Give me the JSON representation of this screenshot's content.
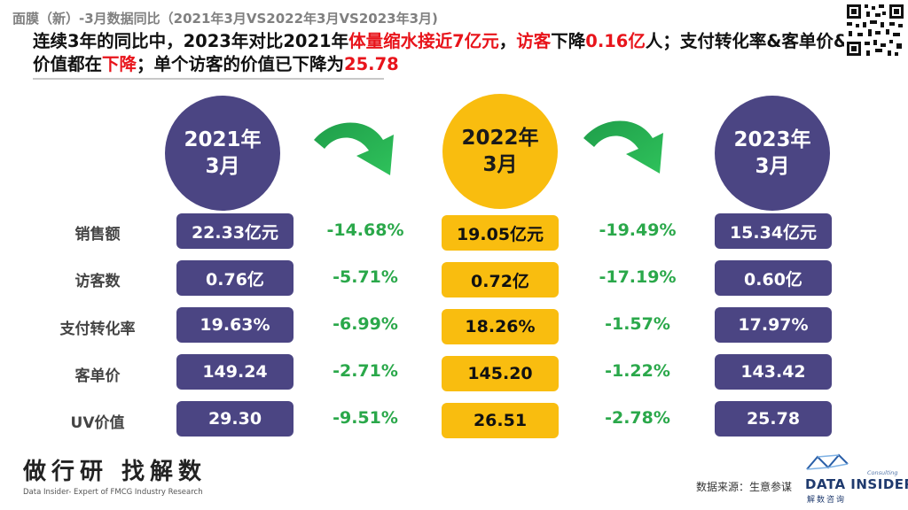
{
  "subtitle": "面膜（新）-3月数据同比（2021年3月VS2022年3月VS2023年3月)",
  "headline": {
    "p1": "连续3年的同比中，2023年对比2021年",
    "r1": "体量缩水接近7亿元",
    "p2": "，",
    "r2": "访客",
    "p3": "下降",
    "r3": "0.16亿",
    "p4": "人；支付转化率&客单价&UV价值都在",
    "r4": "下降",
    "p5": "；单个访客的价值已下降为",
    "r5": "25.78"
  },
  "periods": [
    {
      "line1": "2021年",
      "line2": "3月"
    },
    {
      "line1": "2022年",
      "line2": "3月"
    },
    {
      "line1": "2023年",
      "line2": "3月"
    }
  ],
  "rows": [
    {
      "label": "销售额",
      "v2021": "22.33亿元",
      "c1": "-14.68%",
      "v2022": "19.05亿元",
      "c2": "-19.49%",
      "v2023": "15.34亿元"
    },
    {
      "label": "访客数",
      "v2021": "0.76亿",
      "c1": "-5.71%",
      "v2022": "0.72亿",
      "c2": "-17.19%",
      "v2023": "0.60亿"
    },
    {
      "label": "支付转化率",
      "v2021": "19.63%",
      "c1": "-6.99%",
      "v2022": "18.26%",
      "c2": "-1.57%",
      "v2023": "17.97%"
    },
    {
      "label": "客单价",
      "v2021": "149.24",
      "c1": "-2.71%",
      "v2022": "145.20",
      "c2": "-1.22%",
      "v2023": "143.42"
    },
    {
      "label": "UV价值",
      "v2021": "29.30",
      "c1": "-9.51%",
      "v2022": "26.51",
      "c2": "-2.78%",
      "v2023": "25.78"
    }
  ],
  "footer": {
    "logo": "做行研 找解数",
    "tagline": "Data Insider- Expert of FMCG Industry Research",
    "source": "数据来源：生意参谋",
    "brand": "DATA INSIDER",
    "brand_cn": "解数咨询",
    "brand_small": "Consulting"
  },
  "colors": {
    "navy": "#4b4583",
    "gold": "#f9bd0f",
    "green": "#2aa84a",
    "red": "#e8141b"
  },
  "icons": {
    "arrow": "curved-arrow-icon",
    "qr": "qr-code-icon"
  }
}
